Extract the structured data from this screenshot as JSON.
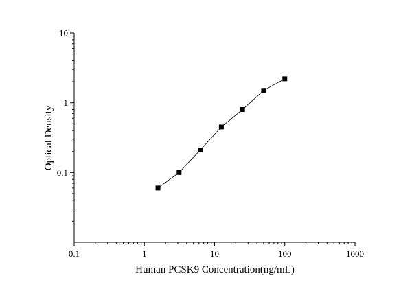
{
  "chart_data": {
    "type": "line",
    "title": "",
    "xlabel": "Human PCSK9 Concentration(ng/mL)",
    "ylabel": "Optical Density",
    "x_scale": "log",
    "y_scale": "log",
    "xlim": [
      0.1,
      1000
    ],
    "ylim": [
      0.01,
      10
    ],
    "x_ticks": [
      {
        "value": 0.1,
        "label": "0.1"
      },
      {
        "value": 1,
        "label": "1"
      },
      {
        "value": 10,
        "label": "10"
      },
      {
        "value": 100,
        "label": "100"
      },
      {
        "value": 1000,
        "label": "1000"
      }
    ],
    "y_ticks": [
      {
        "value": 0.1,
        "label": "0.1"
      },
      {
        "value": 1,
        "label": "1"
      },
      {
        "value": 10,
        "label": "10"
      }
    ],
    "grid": false,
    "marker": "square",
    "series": [
      {
        "x": [
          1.5625,
          3.125,
          6.25,
          12.5,
          25,
          50,
          100
        ],
        "y": [
          0.06,
          0.1,
          0.21,
          0.45,
          0.8,
          1.5,
          2.2
        ]
      }
    ]
  }
}
